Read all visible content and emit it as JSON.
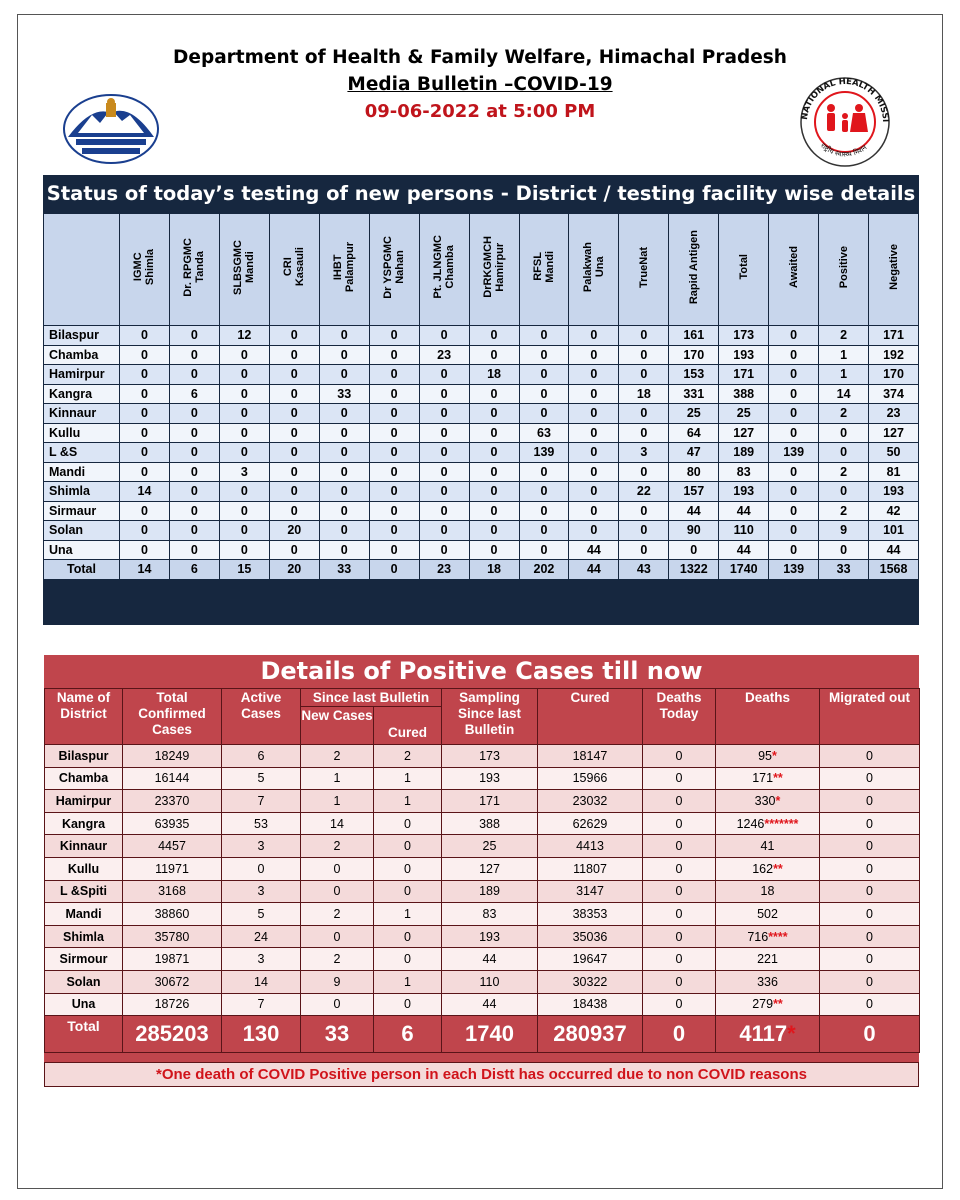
{
  "header": {
    "line1": "Department of Health & Family Welfare, Himachal Pradesh",
    "line2": "Media Bulletin –COVID-19",
    "line3": "09-06-2022 at 5:00 PM"
  },
  "logo_right": {
    "ring_top": "NATIONAL HEALTH MISSION",
    "ring_bottom": "राष्ट्रीय स्वास्थ्य मिशन"
  },
  "testing": {
    "title": "Status of today’s testing of new persons - District / testing facility wise details",
    "columns": [
      "IGMC\nShimla",
      "Dr. RPGMC\nTanda",
      "SLBSGMC\nMandi",
      "CRI\nKasauli",
      "IHBT\nPalampur",
      "Dr YSPGMC\nNahan",
      "Pt. JLNGMC\nChamba",
      "DrRKGMCH\nHamirpur",
      "RFSL\nMandi",
      "Palakwah\nUna",
      "TrueNat",
      "Rapid  Antigen",
      "Total",
      "Awaited",
      "Positive",
      "Negative"
    ],
    "rows": [
      [
        "Bilaspur",
        "0",
        "0",
        "12",
        "0",
        "0",
        "0",
        "0",
        "0",
        "0",
        "0",
        "0",
        "161",
        "173",
        "0",
        "2",
        "171"
      ],
      [
        "Chamba",
        "0",
        "0",
        "0",
        "0",
        "0",
        "0",
        "23",
        "0",
        "0",
        "0",
        "0",
        "170",
        "193",
        "0",
        "1",
        "192"
      ],
      [
        "Hamirpur",
        "0",
        "0",
        "0",
        "0",
        "0",
        "0",
        "0",
        "18",
        "0",
        "0",
        "0",
        "153",
        "171",
        "0",
        "1",
        "170"
      ],
      [
        "Kangra",
        "0",
        "6",
        "0",
        "0",
        "33",
        "0",
        "0",
        "0",
        "0",
        "0",
        "18",
        "331",
        "388",
        "0",
        "14",
        "374"
      ],
      [
        "Kinnaur",
        "0",
        "0",
        "0",
        "0",
        "0",
        "0",
        "0",
        "0",
        "0",
        "0",
        "0",
        "25",
        "25",
        "0",
        "2",
        "23"
      ],
      [
        "Kullu",
        "0",
        "0",
        "0",
        "0",
        "0",
        "0",
        "0",
        "0",
        "63",
        "0",
        "0",
        "64",
        "127",
        "0",
        "0",
        "127"
      ],
      [
        "L &S",
        "0",
        "0",
        "0",
        "0",
        "0",
        "0",
        "0",
        "0",
        "139",
        "0",
        "3",
        "47",
        "189",
        "139",
        "0",
        "50"
      ],
      [
        "Mandi",
        "0",
        "0",
        "3",
        "0",
        "0",
        "0",
        "0",
        "0",
        "0",
        "0",
        "0",
        "80",
        "83",
        "0",
        "2",
        "81"
      ],
      [
        "Shimla",
        "14",
        "0",
        "0",
        "0",
        "0",
        "0",
        "0",
        "0",
        "0",
        "0",
        "22",
        "157",
        "193",
        "0",
        "0",
        "193"
      ],
      [
        "Sirmaur",
        "0",
        "0",
        "0",
        "0",
        "0",
        "0",
        "0",
        "0",
        "0",
        "0",
        "0",
        "44",
        "44",
        "0",
        "2",
        "42"
      ],
      [
        "Solan",
        "0",
        "0",
        "0",
        "20",
        "0",
        "0",
        "0",
        "0",
        "0",
        "0",
        "0",
        "90",
        "110",
        "0",
        "9",
        "101"
      ],
      [
        "Una",
        "0",
        "0",
        "0",
        "0",
        "0",
        "0",
        "0",
        "0",
        "0",
        "44",
        "0",
        "0",
        "44",
        "0",
        "0",
        "44"
      ]
    ],
    "total": [
      "Total",
      "14",
      "6",
      "15",
      "20",
      "33",
      "0",
      "23",
      "18",
      "202",
      "44",
      "43",
      "1322",
      "1740",
      "139",
      "33",
      "1568"
    ]
  },
  "positive": {
    "title": "Details of Positive Cases till now",
    "headers": {
      "district": "Name of District",
      "confirmed": "Total Confirmed Cases",
      "active": "Active Cases",
      "since_last": "Since last Bulletin",
      "new_cases": "New Cases",
      "cured_sub": "Cured",
      "sampling": "Sampling Since last Bulletin",
      "cured": "Cured",
      "deaths_today": "Deaths Today",
      "deaths": "Deaths",
      "migrated": "Migrated out"
    },
    "rows": [
      {
        "district": "Bilaspur",
        "confirmed": "18249",
        "active": "6",
        "new_cases": "2",
        "cured_new": "2",
        "sampling": "173",
        "cured": "18147",
        "deaths_today": "0",
        "deaths": "95",
        "stars": "*",
        "migrated": "0"
      },
      {
        "district": "Chamba",
        "confirmed": "16144",
        "active": "5",
        "new_cases": "1",
        "cured_new": "1",
        "sampling": "193",
        "cured": "15966",
        "deaths_today": "0",
        "deaths": "171",
        "stars": "**",
        "migrated": "0"
      },
      {
        "district": "Hamirpur",
        "confirmed": "23370",
        "active": "7",
        "new_cases": "1",
        "cured_new": "1",
        "sampling": "171",
        "cured": "23032",
        "deaths_today": "0",
        "deaths": "330",
        "stars": "*",
        "migrated": "0"
      },
      {
        "district": "Kangra",
        "confirmed": "63935",
        "active": "53",
        "new_cases": "14",
        "cured_new": "0",
        "sampling": "388",
        "cured": "62629",
        "deaths_today": "0",
        "deaths": "1246",
        "stars": "*******",
        "migrated": "0"
      },
      {
        "district": "Kinnaur",
        "confirmed": "4457",
        "active": "3",
        "new_cases": "2",
        "cured_new": "0",
        "sampling": "25",
        "cured": "4413",
        "deaths_today": "0",
        "deaths": "41",
        "stars": "",
        "migrated": "0"
      },
      {
        "district": "Kullu",
        "confirmed": "11971",
        "active": "0",
        "new_cases": "0",
        "cured_new": "0",
        "sampling": "127",
        "cured": "11807",
        "deaths_today": "0",
        "deaths": "162",
        "stars": "**",
        "migrated": "0"
      },
      {
        "district": "L &Spiti",
        "confirmed": "3168",
        "active": "3",
        "new_cases": "0",
        "cured_new": "0",
        "sampling": "189",
        "cured": "3147",
        "deaths_today": "0",
        "deaths": "18",
        "stars": "",
        "migrated": "0"
      },
      {
        "district": "Mandi",
        "confirmed": "38860",
        "active": "5",
        "new_cases": "2",
        "cured_new": "1",
        "sampling": "83",
        "cured": "38353",
        "deaths_today": "0",
        "deaths": "502",
        "stars": "",
        "migrated": "0"
      },
      {
        "district": "Shimla",
        "confirmed": "35780",
        "active": "24",
        "new_cases": "0",
        "cured_new": "0",
        "sampling": "193",
        "cured": "35036",
        "deaths_today": "0",
        "deaths": "716",
        "stars": "****",
        "migrated": "0"
      },
      {
        "district": "Sirmour",
        "confirmed": "19871",
        "active": "3",
        "new_cases": "2",
        "cured_new": "0",
        "sampling": "44",
        "cured": "19647",
        "deaths_today": "0",
        "deaths": "221",
        "stars": "",
        "migrated": "0"
      },
      {
        "district": "Solan",
        "confirmed": "30672",
        "active": "14",
        "new_cases": "9",
        "cured_new": "1",
        "sampling": "110",
        "cured": "30322",
        "deaths_today": "0",
        "deaths": "336",
        "stars": "",
        "migrated": "0"
      },
      {
        "district": "Una",
        "confirmed": "18726",
        "active": "7",
        "new_cases": "0",
        "cured_new": "0",
        "sampling": "44",
        "cured": "18438",
        "deaths_today": "0",
        "deaths": "279",
        "stars": "**",
        "migrated": "0"
      }
    ],
    "total": {
      "district": "Total",
      "confirmed": "285203",
      "active": "130",
      "new_cases": "33",
      "cured_new": "6",
      "sampling": "1740",
      "cured": "280937",
      "deaths_today": "0",
      "deaths": "4117",
      "stars": "*",
      "migrated": "0"
    },
    "note": "*One death of COVID Positive person in each Distt has occurred due to non COVID reasons"
  },
  "colors": {
    "navy": "#16273f",
    "blue_light": "#dbe5f5",
    "red_header": "#c0454c",
    "red_text": "#c0141b",
    "pink_row": "#f4dada"
  }
}
